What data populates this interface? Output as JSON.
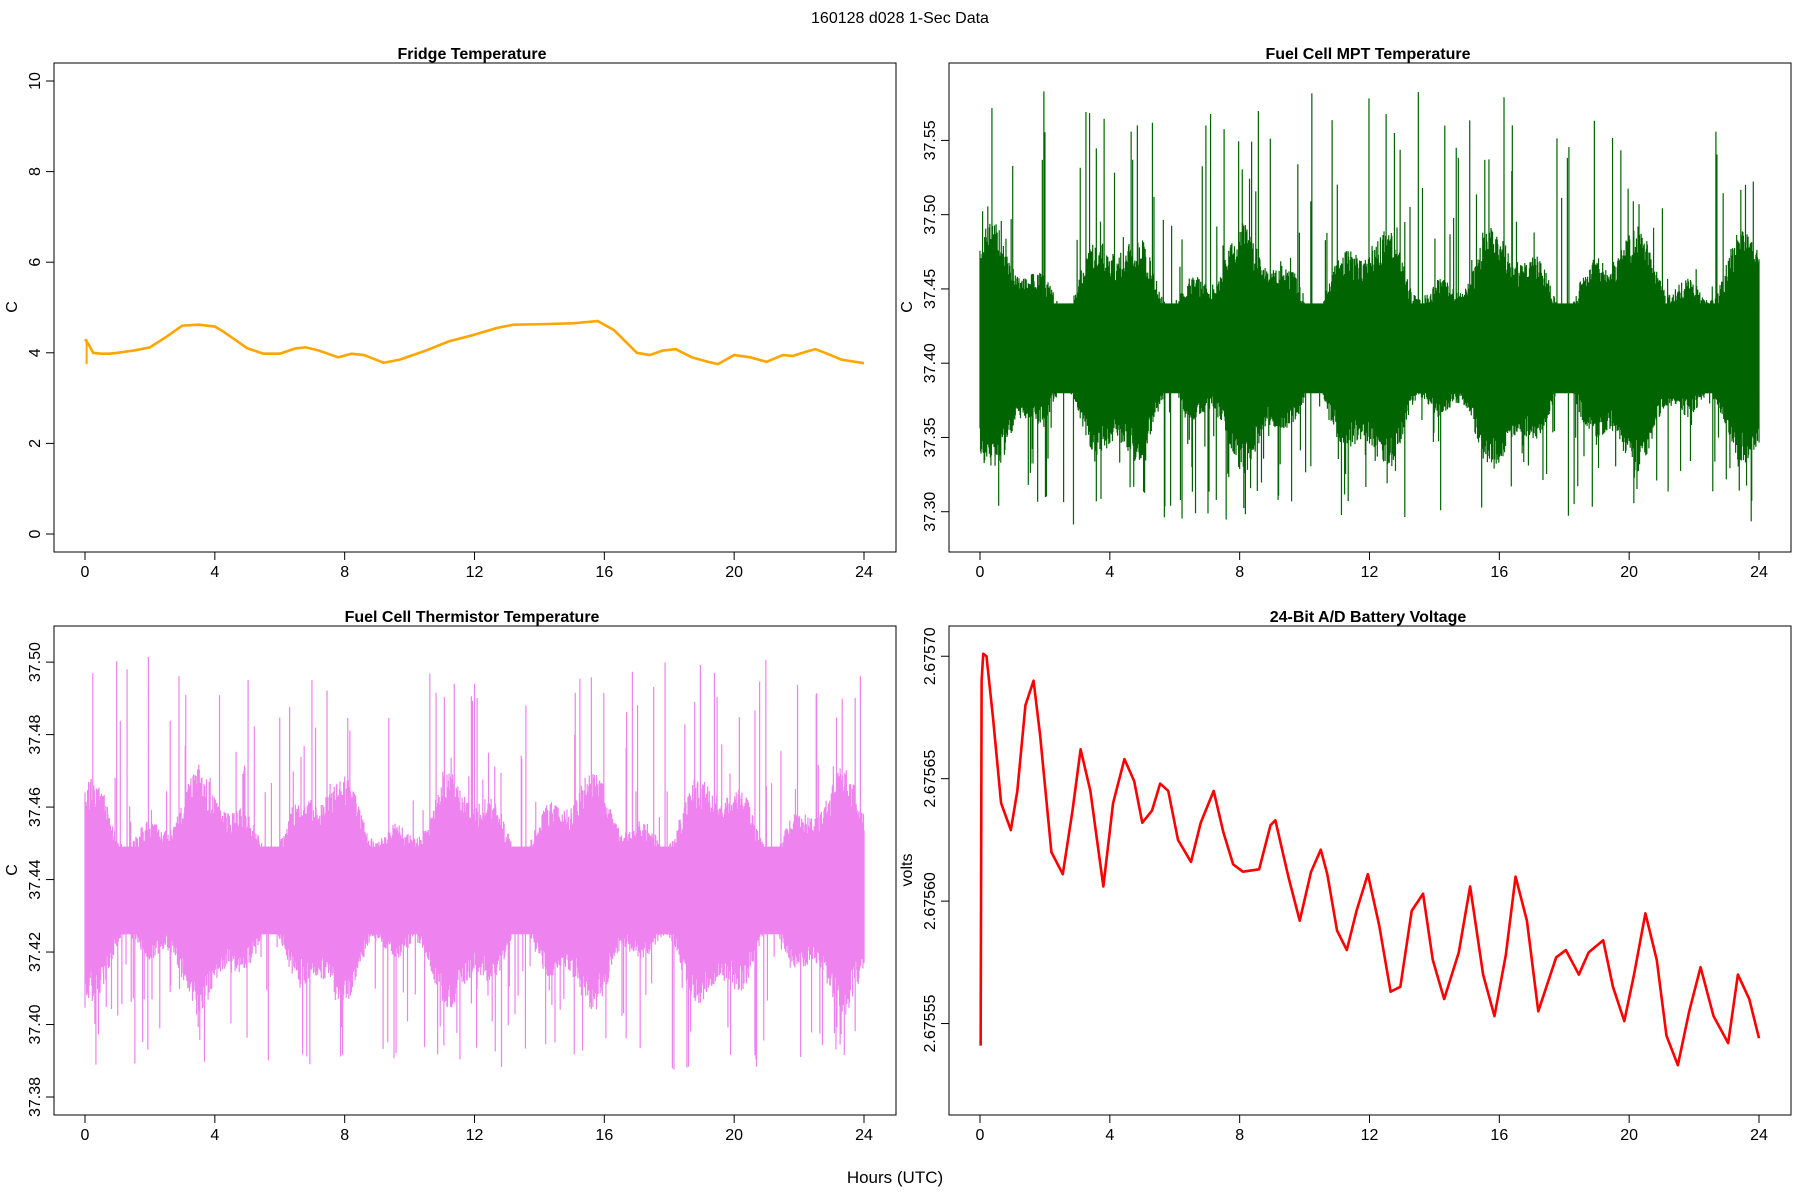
{
  "figure": {
    "header": "160128   d028   1-Sec Data",
    "xlabel": "Hours (UTC)"
  },
  "chart_data": [
    {
      "id": "fridge",
      "type": "line",
      "title": "Fridge Temperature",
      "xlabel": "",
      "ylabel": "C",
      "color": "#FFA500",
      "xlim": [
        0,
        24
      ],
      "ylim": [
        0,
        10
      ],
      "xticks": [
        0,
        4,
        8,
        12,
        16,
        20,
        24
      ],
      "yticks": [
        0,
        2,
        4,
        6,
        8,
        10
      ],
      "ytick_labels": [
        "0",
        "2",
        "4",
        "6",
        "8",
        "10"
      ],
      "noise": 0,
      "x": [
        0,
        0.1,
        0.25,
        0.5,
        0.75,
        1,
        1.5,
        2,
        2.5,
        3,
        3.5,
        4,
        4.3,
        4.6,
        5,
        5.5,
        6,
        6.5,
        6.8,
        7.2,
        7.8,
        8.2,
        8.6,
        9.2,
        9.7,
        10.5,
        11.2,
        12,
        12.7,
        13.2,
        14,
        15,
        15.8,
        16.3,
        17,
        17.4,
        17.8,
        18.2,
        18.7,
        19.2,
        19.5,
        20,
        20.5,
        21,
        21.5,
        21.8,
        22.2,
        22.5,
        22.8,
        23.3,
        24
      ],
      "y": [
        4.3,
        4.2,
        4.0,
        3.98,
        3.98,
        4.0,
        4.05,
        4.12,
        4.35,
        4.6,
        4.62,
        4.58,
        4.45,
        4.3,
        4.1,
        3.98,
        3.98,
        4.1,
        4.12,
        4.05,
        3.9,
        3.98,
        3.95,
        3.78,
        3.85,
        4.05,
        4.25,
        4.4,
        4.55,
        4.62,
        4.63,
        4.65,
        4.7,
        4.5,
        4.0,
        3.95,
        4.05,
        4.08,
        3.9,
        3.8,
        3.75,
        3.95,
        3.9,
        3.8,
        3.95,
        3.93,
        4.02,
        4.08,
        4.0,
        3.85,
        3.77
      ],
      "annotations": [
        {
          "x": 0.05,
          "y": 3.75
        }
      ]
    },
    {
      "id": "mpt",
      "type": "line",
      "title": "Fuel Cell MPT Temperature",
      "xlabel": "",
      "ylabel": "C",
      "color": "#006400",
      "xlim": [
        0,
        24
      ],
      "ylim": [
        37.285,
        37.59
      ],
      "xticks": [
        0,
        4,
        8,
        12,
        16,
        20,
        24
      ],
      "yticks": [
        37.3,
        37.35,
        37.4,
        37.45,
        37.5,
        37.55
      ],
      "ytick_labels": [
        "37.30",
        "37.35",
        "37.40",
        "37.45",
        "37.50",
        "37.55"
      ],
      "noise": 1,
      "band_center": 37.41,
      "band_halfwidth": 0.055,
      "spike_max": 37.59,
      "spike_min": 37.29
    },
    {
      "id": "thermistor",
      "type": "line",
      "title": "Fuel Cell Thermistor Temperature",
      "xlabel": "",
      "ylabel": "C",
      "color": "#EE82EE",
      "xlim": [
        0,
        24
      ],
      "ylim": [
        37.38,
        37.505
      ],
      "xticks": [
        0,
        4,
        8,
        12,
        16,
        20,
        24
      ],
      "yticks": [
        37.38,
        37.4,
        37.42,
        37.44,
        37.46,
        37.48,
        37.5
      ],
      "ytick_labels": [
        "37.38",
        "37.40",
        "37.42",
        "37.44",
        "37.46",
        "37.48",
        "37.50"
      ],
      "noise": 1,
      "band_center": 37.437,
      "band_halfwidth": 0.022,
      "spike_max": 37.504,
      "spike_min": 37.384
    },
    {
      "id": "battery",
      "type": "line",
      "title": "24-Bit A/D Battery Voltage",
      "xlabel": "",
      "ylabel": "volts",
      "color": "#FF0000",
      "xlim": [
        0,
        24
      ],
      "ylim": [
        2.67552,
        2.675705
      ],
      "xticks": [
        0,
        4,
        8,
        12,
        16,
        20,
        24
      ],
      "yticks": [
        2.67555,
        2.6756,
        2.67565,
        2.6757
      ],
      "ytick_labels": [
        "2.67555",
        "2.67560",
        "2.67565",
        "2.67570"
      ],
      "noise": 0,
      "x": [
        0.02,
        0.05,
        0.1,
        0.2,
        0.4,
        0.65,
        0.95,
        1.15,
        1.4,
        1.65,
        1.85,
        2.2,
        2.55,
        2.85,
        3.1,
        3.4,
        3.8,
        4.1,
        4.45,
        4.75,
        5.0,
        5.3,
        5.55,
        5.8,
        6.1,
        6.5,
        6.8,
        7.2,
        7.5,
        7.8,
        8.1,
        8.6,
        8.95,
        9.1,
        9.5,
        9.85,
        10.2,
        10.5,
        10.7,
        11.0,
        11.3,
        11.6,
        11.95,
        12.3,
        12.65,
        12.95,
        13.3,
        13.65,
        13.95,
        14.3,
        14.75,
        15.1,
        15.5,
        15.85,
        16.2,
        16.5,
        16.85,
        17.2,
        17.75,
        18.05,
        18.45,
        18.75,
        19.2,
        19.5,
        19.85,
        20.15,
        20.5,
        20.85,
        21.15,
        21.5,
        21.85,
        22.2,
        22.6,
        23.05,
        23.35,
        23.7,
        24.0
      ],
      "y": [
        2.675541,
        2.67569,
        2.675701,
        2.6757,
        2.675675,
        2.67564,
        2.675629,
        2.675645,
        2.67568,
        2.67569,
        2.675668,
        2.67562,
        2.675611,
        2.675637,
        2.675662,
        2.675645,
        2.675606,
        2.67564,
        2.675658,
        2.675649,
        2.675632,
        2.675637,
        2.675648,
        2.675645,
        2.675625,
        2.675616,
        2.675632,
        2.675645,
        2.675628,
        2.675615,
        2.675612,
        2.675613,
        2.675631,
        2.675633,
        2.67561,
        2.675592,
        2.675612,
        2.675621,
        2.675611,
        2.675588,
        2.67558,
        2.675596,
        2.675611,
        2.67559,
        2.675563,
        2.675565,
        2.675596,
        2.675603,
        2.675576,
        2.67556,
        2.675579,
        2.675606,
        2.67557,
        2.675553,
        2.675578,
        2.67561,
        2.675592,
        2.675555,
        2.675577,
        2.67558,
        2.67557,
        2.675579,
        2.675584,
        2.675565,
        2.675551,
        2.67557,
        2.675595,
        2.675576,
        2.675545,
        2.675533,
        2.675555,
        2.675573,
        2.675553,
        2.675542,
        2.67557,
        2.67556,
        2.675544
      ]
    }
  ]
}
